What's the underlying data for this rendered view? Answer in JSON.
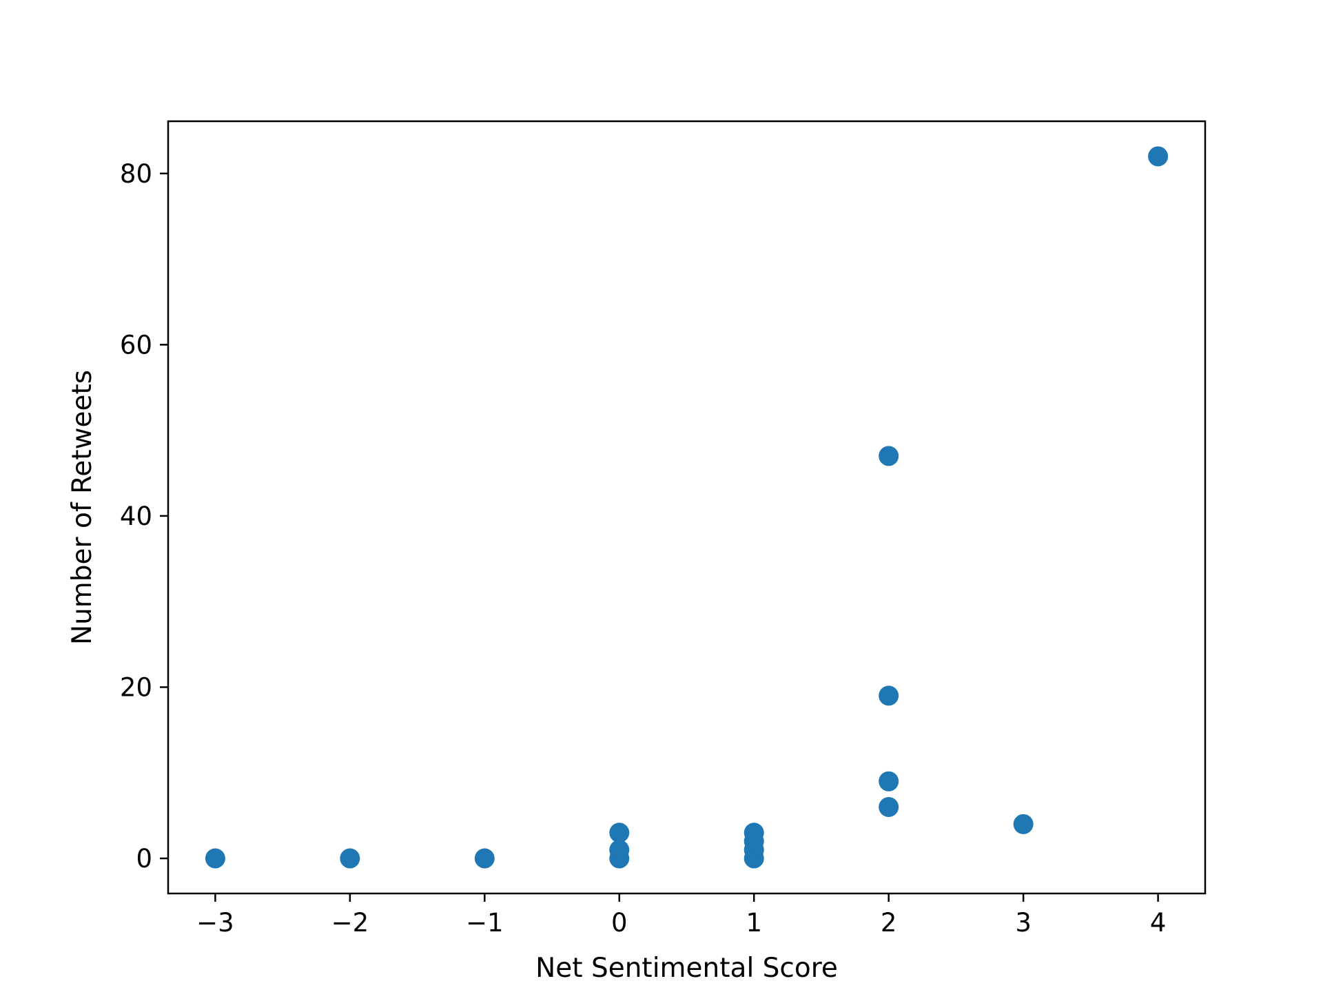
{
  "chart_data": {
    "type": "scatter",
    "title": "",
    "xlabel": "Net Sentimental Score",
    "ylabel": "Number of Retweets",
    "xlim": [
      -3.35,
      4.35
    ],
    "ylim": [
      -4.1,
      86.1
    ],
    "x_ticks": [
      -3,
      -2,
      -1,
      0,
      1,
      2,
      3,
      4
    ],
    "x_tick_labels": [
      "−3",
      "−2",
      "−1",
      "0",
      "1",
      "2",
      "3",
      "4"
    ],
    "y_ticks": [
      0,
      20,
      40,
      60,
      80
    ],
    "y_tick_labels": [
      "0",
      "20",
      "40",
      "60",
      "80"
    ],
    "grid": false,
    "marker_color": "#1f77b4",
    "points": [
      {
        "x": -3,
        "y": 0
      },
      {
        "x": -2,
        "y": 0
      },
      {
        "x": -1,
        "y": 0
      },
      {
        "x": 0,
        "y": 0
      },
      {
        "x": 0,
        "y": 1
      },
      {
        "x": 0,
        "y": 3
      },
      {
        "x": 1,
        "y": 0
      },
      {
        "x": 1,
        "y": 1
      },
      {
        "x": 1,
        "y": 2
      },
      {
        "x": 1,
        "y": 3
      },
      {
        "x": 2,
        "y": 6
      },
      {
        "x": 2,
        "y": 9
      },
      {
        "x": 2,
        "y": 19
      },
      {
        "x": 2,
        "y": 47
      },
      {
        "x": 3,
        "y": 4
      },
      {
        "x": 4,
        "y": 82
      }
    ]
  }
}
